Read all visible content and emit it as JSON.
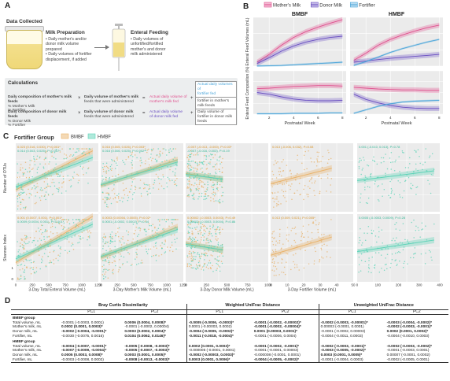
{
  "panels": {
    "a": "A",
    "b": "B",
    "c": "C",
    "d": "D"
  },
  "panelA": {
    "data_collected": "Data Collected",
    "milk_prep": {
      "title": "Milk Preparation",
      "bullets": [
        "• Daily mother's and/or",
        "  donor milk volume",
        "  prepared",
        "• Daily volumes of fortifier",
        "  displacement, if added"
      ]
    },
    "enteral": {
      "title": "Enteral Feeding",
      "bullets": [
        "• Daily volumes of",
        "  unfortified/fortified",
        "  mother's and donor",
        "  milk administered"
      ]
    },
    "calculations": {
      "title": "Calculations",
      "row1": {
        "c1": [
          "Daily composition of mother's milk feeds",
          "% Mother's Milk",
          "% Fortifier"
        ],
        "c2": [
          "Daily volume of mother's milk",
          "feeds that were administered"
        ],
        "c3": [
          "Actual daily volume of",
          "mother's milk fed"
        ],
        "c4": [
          "Daily volume of",
          "fortifier in mother's",
          "milk feeds"
        ]
      },
      "row2": {
        "c1": [
          "Daily composition of donor milk feeds",
          "% Donor Milk",
          "% Fortifier"
        ],
        "c2": [
          "Daily volume of donor milk",
          "feeds that were administered"
        ],
        "c3": [
          "Actual daily volume",
          "of donor milk fed"
        ],
        "c4": [
          "Daily volume of",
          "fortifier in donor milk",
          "feeds"
        ]
      },
      "fortifier_box": [
        "Actual daily volumes of",
        "fortifier fed"
      ]
    }
  },
  "panelB": {
    "legend": [
      "Mother's Milk",
      "Donor Milk",
      "Fortifier"
    ],
    "facets": [
      "BMBF",
      "HMBF"
    ],
    "ylabel_top": "Enteral Feed Volumes (mL)",
    "ylabel_bottom": "Enteral Feed Composition (%)",
    "xlabel": "Postnatal Week",
    "colors": {
      "mother": "#e0508e",
      "donor": "#6a4fc2",
      "fortifier": "#4aa5da"
    }
  },
  "chart_data": [
    {
      "type": "line",
      "facet": "BMBF",
      "ylabel": "Enteral Feed Volumes (mL)",
      "xlabel": "Postnatal Week",
      "x": [
        1,
        2,
        3,
        4,
        5,
        6,
        7,
        8
      ],
      "xticks": [
        2,
        4,
        6,
        8
      ],
      "ylim": [
        0,
        150
      ],
      "yticks": [
        0,
        50,
        100,
        150
      ],
      "series": [
        {
          "name": "Mother's Milk",
          "values": [
            12,
            36,
            64,
            88,
            106,
            120,
            132,
            143
          ]
        },
        {
          "name": "Donor Milk",
          "values": [
            8,
            26,
            46,
            62,
            74,
            82,
            88,
            92
          ]
        },
        {
          "name": "Fortifier",
          "values": [
            0.5,
            1,
            2,
            4,
            6,
            8,
            10,
            12
          ]
        }
      ]
    },
    {
      "type": "line",
      "facet": "HMBF",
      "ylabel": "Enteral Feed Volumes (mL)",
      "xlabel": "Postnatal Week",
      "x": [
        1,
        2,
        3,
        4,
        5,
        6,
        7,
        8
      ],
      "xticks": [
        2,
        4,
        6,
        8
      ],
      "ylim": [
        0,
        150
      ],
      "yticks": [
        0,
        50,
        100,
        150
      ],
      "series": [
        {
          "name": "Mother's Milk",
          "values": [
            18,
            40,
            64,
            82,
            96,
            108,
            118,
            126
          ]
        },
        {
          "name": "Donor Milk",
          "values": [
            12,
            16,
            20,
            24,
            27,
            30,
            33,
            36
          ]
        },
        {
          "name": "Fortifier",
          "values": [
            2,
            14,
            28,
            42,
            54,
            64,
            74,
            82
          ]
        }
      ]
    },
    {
      "type": "line",
      "facet": "BMBF",
      "ylabel": "Enteral Feed Composition (%)",
      "xlabel": "Postnatal Week",
      "x": [
        1,
        2,
        3,
        4,
        5,
        6,
        7,
        8
      ],
      "xticks": [
        2,
        4,
        6,
        8
      ],
      "ylim": [
        0,
        100
      ],
      "yticks": [
        0,
        25,
        50,
        75,
        100
      ],
      "series": [
        {
          "name": "Mother's Milk",
          "values": [
            59,
            60,
            62,
            64,
            65,
            66,
            66,
            65
          ]
        },
        {
          "name": "Donor Milk",
          "values": [
            50,
            46,
            40,
            35,
            32,
            31,
            31,
            32
          ]
        },
        {
          "name": "Fortifier",
          "values": [
            1,
            1,
            1,
            2,
            2,
            2,
            3,
            3
          ]
        }
      ]
    },
    {
      "type": "line",
      "facet": "HMBF",
      "ylabel": "Enteral Feed Composition (%)",
      "xlabel": "Postnatal Week",
      "x": [
        1,
        2,
        3,
        4,
        5,
        6,
        7,
        8
      ],
      "xticks": [
        2,
        4,
        6,
        8
      ],
      "ylim": [
        0,
        100
      ],
      "yticks": [
        0,
        25,
        50,
        75,
        100
      ],
      "series": [
        {
          "name": "Mother's Milk",
          "values": [
            62,
            60,
            58,
            57,
            56,
            56,
            55,
            55
          ]
        },
        {
          "name": "Donor Milk",
          "values": [
            46,
            34,
            26,
            20,
            16,
            14,
            13,
            13
          ]
        },
        {
          "name": "Fortifier",
          "values": [
            2,
            10,
            18,
            24,
            28,
            30,
            31,
            32
          ]
        }
      ]
    },
    {
      "type": "scatter",
      "group": "Fortifier Group",
      "legend": [
        "BMBF",
        "HMBF"
      ],
      "colors": {
        "BMBF": "#e9b36b",
        "HMBF": "#5fd3b8"
      },
      "rows": [
        "Number of OTUs",
        "Shannon Index"
      ],
      "columns": [
        {
          "xlabel": "3-Day Total Enteral Volume (mL)",
          "xticks": [
            0,
            250,
            500,
            750,
            1000,
            1250
          ]
        },
        {
          "xlabel": "3-Day Mother's Milk Volume (mL)",
          "xticks": [
            0,
            250,
            500,
            750,
            1000,
            1250
          ]
        },
        {
          "xlabel": "3-Day Donor Milk Volume (mL)",
          "xticks": [
            0,
            250,
            500,
            750,
            1000
          ]
        },
        {
          "xlabel": "3-Day Fortifier Volume (mL)",
          "xticks": [
            0,
            10,
            20,
            30,
            40,
            50
          ]
        },
        {
          "xlabel": "",
          "xticks": [
            0,
            100,
            200,
            300,
            400
          ]
        }
      ],
      "annotations": {
        "otu": [
          [
            "0.023 (0.016, 0.030), P<0.001*",
            "0.014 (0.003, 0.025), P=0.007*"
          ],
          [
            "0.016 (0.005, 0.026), P=0.003*",
            "0.016 (0.006, 0.025), P=0.002*"
          ],
          [
            "-0.007 (-0.013, -0.000), P=0.03*",
            "-0.007 (-0.016, 0.003), P=0.19"
          ],
          [
            "0.013 (-0.006, 0.032), P=0.08",
            ""
          ],
          [
            "",
            "0.001 (-0.010, 0.013), P=0.78"
          ]
        ],
        "shannon": [
          [
            "0.001 (0.0007, 0.001), P<0.001*",
            "0.0009 (0.0004, 0.001), P<0.001*"
          ],
          [
            "0.0003 (0.00004, 0.0005), P=0.02*",
            "0.0001 (-0.0002, 0.0002), P=0.44"
          ],
          [
            "0.00002 (-0.0003, 0.0003), P=0.49",
            "0.00003 (-0.0003, 0.0004), P=0.86"
          ],
          [
            "0.013 (0.009, 0.021), P=0.005*",
            ""
          ],
          [
            "",
            "0.0005 (-0.0003, 0.0009), P=0.28"
          ]
        ]
      }
    }
  ],
  "panelC": {
    "title": "Fortifier Group",
    "legend": [
      "BMBF",
      "HMBF"
    ],
    "ylabel_top": "Number of OTUs",
    "ylabel_bottom": "Shannon Index",
    "ytick_top": "0",
    "ytick_bottom": "1"
  },
  "panelD": {
    "groups": [
      "Bray Curtis Dissimilarity",
      "Weighted UniFrac Distance",
      "Unweighted UniFrac Distance"
    ],
    "pcs": [
      "PC1",
      "PC2",
      "PC1",
      "PC2",
      "PC1",
      "PC2"
    ],
    "sections": [
      {
        "title": "BMBF group",
        "rows": [
          {
            "label": "Total volume, mL",
            "cells": [
              "-0.0001 (-0.0003, 0.0001)",
              "0.0006 (0.0004, 0.0008)*",
              "-0.0005 (-0.0006, -0.0003)*",
              "-0.0001 (-0.0002, -0.00002)*",
              "-0.0002 (-0.0003, -0.00001)*",
              "-0.0003 (-0.0004, -0.0002)*"
            ],
            "bold": [
              false,
              true,
              true,
              true,
              true,
              true
            ]
          },
          {
            "label": "Mother's milk, mL",
            "cells": [
              "0.0002 (0.0001, 0.0003)*",
              "-0.0001 (-0.0002, 0.00004)",
              "0.0001 (-0.00003, 0.0002)",
              "-0.0001 (-0.0002, -0.00004)*",
              "0.00003 (-0.0001, 0.0001)",
              "-0.0002 (-0.0003, -0.0001)*"
            ],
            "bold": [
              true,
              false,
              false,
              true,
              false,
              true
            ]
          },
          {
            "label": "Donor milk, mL",
            "cells": [
              "-0.0002 (-0.0004, -0.0001)*",
              "0.0003 (0.0002, 0.0004)*",
              "-0.0004 (-0.0005, -0.0002)*",
              "0.0001 (0.00003, 0.0001)*",
              "-0.0001 (-0.0002, 0.00003)",
              "0.0002 (0.0001, 0.0002)*"
            ],
            "bold": [
              true,
              true,
              true,
              true,
              false,
              true
            ]
          },
          {
            "label": "Fortifier, mL",
            "cells": [
              "-0.0030 (-0.0075, 0.0016)",
              "0.0104 (0.0062, 0.0146)*",
              "-0.0011 (-0.0018, -0.0004)*",
              "-0.0001 (-0.0006, 0.0004)",
              "-0.0004 (-0.0011, 0.0003)",
              "-0.0004 (-0.0010, 0.0003)"
            ],
            "bold": [
              false,
              true,
              true,
              false,
              false,
              false
            ]
          }
        ]
      },
      {
        "title": "HMBF group",
        "rows": [
          {
            "label": "Total volume, mL",
            "cells": [
              "-0.0004 (-0.0007, -0.0001)*",
              "-0.0005 (-0.0008, -0.0003)*",
              "0.0002 (0.0001, 0.0003)*",
              "-0.0001 (-0.0002, -0.0001)*",
              "-0.0002 (-0.0003, -0.0001)*",
              "-0.0002 (-0.0003, -0.0002)*"
            ],
            "bold": [
              true,
              true,
              true,
              true,
              true,
              true
            ]
          },
          {
            "label": "Mother's milk, mL",
            "cells": [
              "-0.0007 (-0.0009, -0.0004)*",
              "-0.0005 (-0.0007, -0.0003)*",
              "-0.000005 (-0.0001, 0.0001)",
              "-0.0001 (-0.0001, 0.00003)",
              "-0.0003 (-0.0005, -0.0002)*",
              "-0.0001 (-0.0003, 0.0001)"
            ],
            "bold": [
              true,
              true,
              false,
              false,
              true,
              false
            ]
          },
          {
            "label": "Donor milk, mL",
            "cells": [
              "0.0005 (0.0003, 0.0008)*",
              "0.0003 (0.0001, 0.0005)*",
              "-0.0002 (-0.00003, 0.0003)*",
              "-0.000008 (-0.0001, 0.0001)",
              "0.0003 (0.0001, 0.0005)*",
              "0.00007 (-0.0001, 0.0002)"
            ],
            "bold": [
              true,
              true,
              true,
              false,
              true,
              false
            ]
          },
          {
            "label": "Fortifier, mL",
            "cells": [
              "-0.0003 (-0.0008, 0.0002)",
              "-0.0008 (-0.0013, -0.0003)*",
              "0.0003 (0.0001, 0.0006)*",
              "-0.0004 (-0.0005, -0.0002)*",
              "-0.0001 (-0.0004, 0.0003)",
              "-0.0002 (-0.0005, 0.0001)"
            ],
            "bold": [
              false,
              true,
              true,
              true,
              false,
              false
            ]
          }
        ]
      }
    ]
  }
}
